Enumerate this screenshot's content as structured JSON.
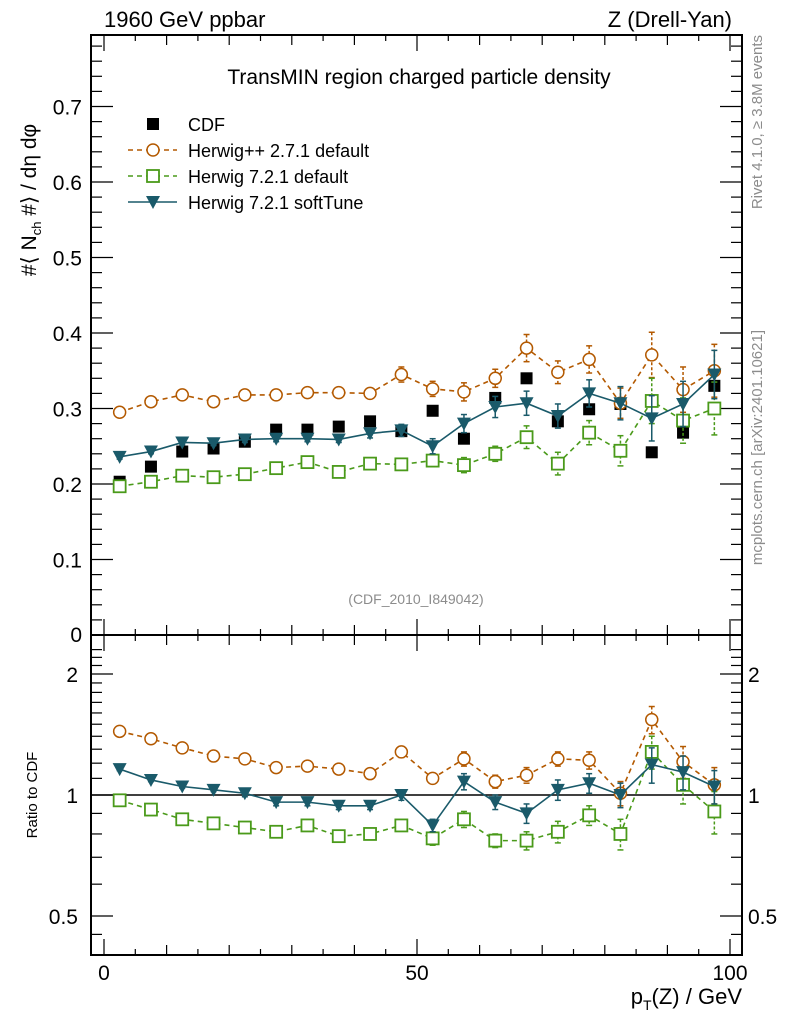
{
  "chart_data": [
    {
      "type": "line",
      "panel": "main",
      "title": "TransMIN region charged particle density",
      "top_left_label": "1960 GeV ppbar",
      "top_right_label": "Z (Drell-Yan)",
      "ylabel": "#⟨ N_ch #⟩ / dη dφ",
      "ylabel_parts": {
        "pre": "#⟨ N",
        "sub": "ch",
        "post": " #⟩ / dη dφ"
      },
      "xlabel": "p_T(Z) / GeV",
      "xlabel_parts": {
        "pre": "p",
        "sub": "T",
        "post": "(Z) / GeV"
      },
      "xlim": [
        -2,
        102
      ],
      "ylim": [
        0,
        0.8
      ],
      "yticks": [
        0.1,
        0.2,
        0.3,
        0.4,
        0.5,
        0.6,
        0.7
      ],
      "ytick_labels": [
        "0.1",
        "0.2",
        "0.3",
        "0.4",
        "0.5",
        "0.6",
        "0.7"
      ],
      "y_zero_label": "0",
      "legend_position": "top-left",
      "annotation": "(CDF_2010_I849042)",
      "side_text_top": "Rivet 4.1.0, ≥ 3.8M events",
      "side_text_bottom": "mcplots.cern.ch [arXiv:2401.10621]",
      "x": [
        2.5,
        7.5,
        12.5,
        17.5,
        22.5,
        27.5,
        32.5,
        37.5,
        42.5,
        47.5,
        52.5,
        57.5,
        62.5,
        67.5,
        72.5,
        77.5,
        82.5,
        87.5,
        92.5,
        97.5
      ],
      "series": [
        {
          "name": "CDF",
          "marker": "filled-square",
          "line": "none",
          "color": "#000000",
          "values": [
            0.203,
            0.223,
            0.243,
            0.247,
            0.256,
            0.272,
            0.272,
            0.276,
            0.283,
            0.27,
            0.297,
            0.26,
            0.314,
            0.34,
            0.283,
            0.299,
            0.306,
            0.242,
            0.268,
            0.33
          ]
        },
        {
          "name": "Herwig++ 2.7.1 default",
          "marker": "open-circle",
          "line": "dashed",
          "color": "#b35900",
          "values": [
            0.295,
            0.309,
            0.318,
            0.309,
            0.318,
            0.318,
            0.321,
            0.321,
            0.32,
            0.345,
            0.326,
            0.322,
            0.34,
            0.38,
            0.348,
            0.365,
            0.307,
            0.371,
            0.325,
            0.35
          ],
          "errors": [
            0.003,
            0.003,
            0.003,
            0.003,
            0.003,
            0.003,
            0.004,
            0.004,
            0.006,
            0.01,
            0.01,
            0.012,
            0.012,
            0.018,
            0.015,
            0.018,
            0.02,
            0.03,
            0.03,
            0.035
          ]
        },
        {
          "name": "Herwig 7.2.1 default",
          "marker": "open-square",
          "line": "dashed",
          "color": "#4a9a1a",
          "values": [
            0.197,
            0.203,
            0.211,
            0.209,
            0.213,
            0.221,
            0.229,
            0.216,
            0.227,
            0.226,
            0.231,
            0.225,
            0.24,
            0.262,
            0.227,
            0.268,
            0.244,
            0.31,
            0.284,
            0.3
          ],
          "errors": [
            0.003,
            0.003,
            0.003,
            0.003,
            0.003,
            0.004,
            0.004,
            0.004,
            0.006,
            0.006,
            0.008,
            0.01,
            0.01,
            0.015,
            0.015,
            0.016,
            0.02,
            0.03,
            0.03,
            0.035
          ]
        },
        {
          "name": "Herwig 7.2.1 softTune",
          "marker": "filled-triangle-down",
          "line": "solid",
          "color": "#1a5a6a",
          "values": [
            0.236,
            0.243,
            0.255,
            0.254,
            0.259,
            0.26,
            0.26,
            0.259,
            0.267,
            0.271,
            0.25,
            0.28,
            0.302,
            0.307,
            0.29,
            0.32,
            0.307,
            0.287,
            0.306,
            0.345
          ],
          "errors": [
            0.003,
            0.003,
            0.003,
            0.003,
            0.004,
            0.004,
            0.004,
            0.004,
            0.006,
            0.008,
            0.01,
            0.012,
            0.014,
            0.016,
            0.016,
            0.018,
            0.022,
            0.03,
            0.03,
            0.032
          ]
        }
      ]
    },
    {
      "type": "line",
      "panel": "ratio",
      "ylabel": "Ratio to CDF",
      "yscale": "log",
      "ylim": [
        0.42,
        2.35
      ],
      "yticks": [
        0.5,
        1,
        2
      ],
      "ytick_labels": [
        "0.5",
        "1",
        "2"
      ],
      "xticks": [
        0,
        50,
        100
      ],
      "xtick_labels": [
        "0",
        "50",
        "100"
      ],
      "reference_line": 1,
      "x": [
        2.5,
        7.5,
        12.5,
        17.5,
        22.5,
        27.5,
        32.5,
        37.5,
        42.5,
        47.5,
        52.5,
        57.5,
        62.5,
        67.5,
        72.5,
        77.5,
        82.5,
        87.5,
        92.5,
        97.5
      ],
      "series": [
        {
          "name": "Herwig++ 2.7.1 default",
          "color": "#b35900",
          "marker": "open-circle",
          "line": "dashed",
          "values": [
            1.44,
            1.38,
            1.31,
            1.25,
            1.23,
            1.17,
            1.18,
            1.16,
            1.13,
            1.28,
            1.1,
            1.23,
            1.08,
            1.12,
            1.23,
            1.22,
            1.01,
            1.54,
            1.21,
            1.06
          ],
          "errors": [
            0.01,
            0.01,
            0.01,
            0.01,
            0.01,
            0.01,
            0.01,
            0.01,
            0.02,
            0.04,
            0.03,
            0.05,
            0.04,
            0.05,
            0.05,
            0.06,
            0.07,
            0.12,
            0.11,
            0.11
          ]
        },
        {
          "name": "Herwig 7.2.1 default",
          "color": "#4a9a1a",
          "marker": "open-square",
          "line": "dashed",
          "values": [
            0.97,
            0.92,
            0.87,
            0.85,
            0.83,
            0.81,
            0.84,
            0.79,
            0.8,
            0.84,
            0.78,
            0.87,
            0.77,
            0.77,
            0.81,
            0.89,
            0.8,
            1.28,
            1.06,
            0.91
          ],
          "errors": [
            0.01,
            0.01,
            0.01,
            0.01,
            0.01,
            0.01,
            0.02,
            0.02,
            0.02,
            0.02,
            0.03,
            0.04,
            0.03,
            0.04,
            0.05,
            0.05,
            0.07,
            0.12,
            0.11,
            0.11
          ]
        },
        {
          "name": "Herwig 7.2.1 softTune",
          "color": "#1a5a6a",
          "marker": "filled-triangle-down",
          "line": "solid",
          "values": [
            1.16,
            1.09,
            1.05,
            1.03,
            1.01,
            0.96,
            0.96,
            0.94,
            0.94,
            1.0,
            0.84,
            1.08,
            0.96,
            0.9,
            1.03,
            1.07,
            1.0,
            1.19,
            1.14,
            1.05
          ],
          "errors": [
            0.01,
            0.01,
            0.01,
            0.01,
            0.02,
            0.02,
            0.02,
            0.02,
            0.02,
            0.03,
            0.03,
            0.05,
            0.04,
            0.05,
            0.06,
            0.06,
            0.07,
            0.12,
            0.11,
            0.1
          ]
        }
      ]
    }
  ]
}
